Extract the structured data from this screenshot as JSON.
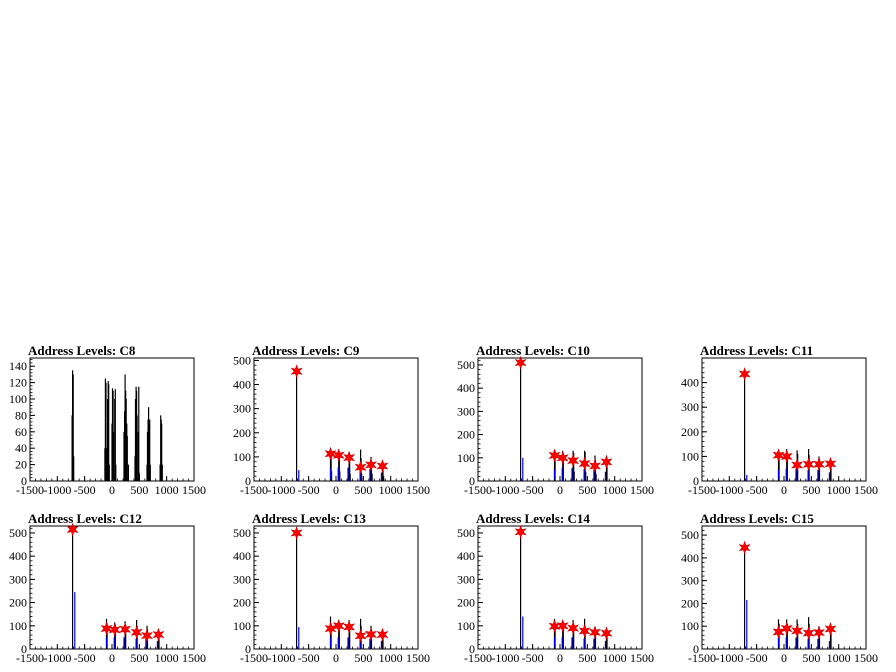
{
  "chart_data": [
    {
      "type": "bar",
      "title": "Address Levels: C8",
      "ylim": [
        0,
        150
      ],
      "yticks": [
        0,
        20,
        40,
        60,
        80,
        100,
        120,
        140
      ],
      "xlim": [
        -1500,
        1500
      ],
      "xticks": [
        -1500,
        -1000,
        -500,
        0,
        500,
        1000,
        1500
      ],
      "series": [
        {
          "color": "#000000",
          "x": [
            -730,
            -720,
            -710,
            -700,
            -130,
            -120,
            -110,
            -100,
            -80,
            -70,
            -60,
            -50,
            0,
            10,
            20,
            30,
            50,
            60,
            70,
            220,
            230,
            240,
            250,
            260,
            270,
            280,
            300,
            420,
            430,
            440,
            450,
            460,
            480,
            490,
            500,
            640,
            650,
            660,
            670,
            680,
            690,
            700,
            880,
            890,
            900,
            910,
            920
          ],
          "values": [
            80,
            135,
            130,
            30,
            40,
            125,
            120,
            40,
            100,
            122,
            118,
            20,
            70,
            113,
            110,
            60,
            100,
            112,
            20,
            60,
            85,
            130,
            110,
            100,
            70,
            55,
            20,
            30,
            100,
            115,
            110,
            80,
            60,
            115,
            10,
            20,
            60,
            75,
            90,
            70,
            75,
            20,
            20,
            80,
            75,
            70,
            20
          ]
        }
      ]
    },
    {
      "type": "bar",
      "title": "Address Levels: C9",
      "ylim": [
        0,
        510
      ],
      "yticks": [
        0,
        100,
        200,
        300,
        400,
        500
      ],
      "xlim": [
        -1500,
        1500
      ],
      "xticks": [
        -1500,
        -1000,
        -500,
        0,
        500,
        1000,
        1500
      ],
      "series": [
        {
          "color": "#000000",
          "x": [
            -720,
            -100,
            -90,
            -80,
            50,
            60,
            70,
            240,
            250,
            260,
            450,
            460,
            470,
            640,
            650,
            660,
            850,
            860,
            870
          ],
          "values": [
            460,
            120,
            110,
            40,
            120,
            115,
            40,
            120,
            110,
            30,
            130,
            95,
            30,
            100,
            80,
            30,
            80,
            70,
            20
          ]
        },
        {
          "color": "#0000ff",
          "x": [
            -680,
            -100,
            40,
            220,
            440,
            620,
            830
          ],
          "values": [
            45,
            50,
            55,
            55,
            50,
            50,
            35
          ]
        }
      ],
      "markers": {
        "x": [
          -720,
          -100,
          50,
          240,
          450,
          640,
          850
        ],
        "values": [
          455,
          113,
          107,
          97,
          57,
          67,
          62
        ]
      }
    },
    {
      "type": "bar",
      "title": "Address Levels: C10",
      "ylim": [
        0,
        530
      ],
      "yticks": [
        0,
        100,
        200,
        300,
        400,
        500
      ],
      "xlim": [
        -1500,
        1500
      ],
      "xticks": [
        -1500,
        -1000,
        -500,
        0,
        500,
        1000,
        1500
      ],
      "series": [
        {
          "color": "#000000",
          "x": [
            -720,
            -100,
            -90,
            50,
            60,
            240,
            250,
            260,
            450,
            460,
            470,
            640,
            650,
            660,
            850,
            860
          ],
          "values": [
            520,
            120,
            130,
            130,
            120,
            130,
            120,
            40,
            130,
            125,
            40,
            110,
            90,
            30,
            110,
            90
          ]
        },
        {
          "color": "#0000ff",
          "x": [
            -680,
            -100,
            40,
            220,
            440,
            620,
            830
          ],
          "values": [
            100,
            50,
            55,
            55,
            50,
            50,
            40
          ]
        }
      ],
      "markers": {
        "x": [
          -720,
          -100,
          50,
          240,
          450,
          640,
          850
        ],
        "values": [
          510,
          110,
          100,
          88,
          75,
          65,
          82
        ]
      }
    },
    {
      "type": "bar",
      "title": "Address Levels: C11",
      "ylim": [
        0,
        500
      ],
      "yticks": [
        0,
        100,
        200,
        300,
        400
      ],
      "xlim": [
        -1500,
        1500
      ],
      "xticks": [
        -1500,
        -1000,
        -500,
        0,
        500,
        1000,
        1500
      ],
      "series": [
        {
          "color": "#000000",
          "x": [
            -720,
            -100,
            -90,
            50,
            60,
            240,
            250,
            450,
            460,
            640,
            650,
            850,
            860
          ],
          "values": [
            440,
            120,
            115,
            130,
            110,
            125,
            110,
            130,
            105,
            100,
            90,
            90,
            80
          ]
        },
        {
          "color": "#0000ff",
          "x": [
            -680,
            -100,
            40,
            220,
            440,
            620,
            830
          ],
          "values": [
            25,
            45,
            50,
            50,
            45,
            45,
            35
          ]
        }
      ],
      "markers": {
        "x": [
          -720,
          -100,
          50,
          240,
          450,
          640,
          850
        ],
        "values": [
          435,
          105,
          100,
          65,
          68,
          68,
          70
        ]
      }
    },
    {
      "type": "bar",
      "title": "Address Levels: C12",
      "ylim": [
        0,
        530
      ],
      "yticks": [
        0,
        100,
        200,
        300,
        400,
        500
      ],
      "xlim": [
        -1500,
        1500
      ],
      "xticks": [
        -1500,
        -1000,
        -500,
        0,
        500,
        1000,
        1500
      ],
      "series": [
        {
          "color": "#000000",
          "x": [
            -720,
            -100,
            -90,
            50,
            60,
            240,
            250,
            450,
            460,
            640,
            650,
            850,
            860
          ],
          "values": [
            520,
            130,
            110,
            115,
            105,
            120,
            105,
            125,
            100,
            100,
            85,
            80,
            70
          ]
        },
        {
          "color": "#0000ff",
          "x": [
            -680,
            -100,
            40,
            220,
            440,
            620,
            830
          ],
          "values": [
            245,
            50,
            50,
            50,
            45,
            45,
            35
          ]
        }
      ],
      "markers": {
        "x": [
          -720,
          -100,
          50,
          240,
          450,
          640,
          850
        ],
        "values": [
          515,
          88,
          83,
          85,
          72,
          58,
          62
        ]
      }
    },
    {
      "type": "bar",
      "title": "Address Levels: C13",
      "ylim": [
        0,
        530
      ],
      "yticks": [
        0,
        100,
        200,
        300,
        400,
        500
      ],
      "xlim": [
        -1500,
        1500
      ],
      "xticks": [
        -1500,
        -1000,
        -500,
        0,
        500,
        1000,
        1500
      ],
      "series": [
        {
          "color": "#000000",
          "x": [
            -720,
            -100,
            -90,
            50,
            60,
            240,
            250,
            450,
            460,
            640,
            650,
            850,
            860
          ],
          "values": [
            505,
            140,
            110,
            115,
            105,
            125,
            105,
            130,
            100,
            100,
            85,
            80,
            70
          ]
        },
        {
          "color": "#0000ff",
          "x": [
            -680,
            -100,
            40,
            220,
            440,
            620,
            830
          ],
          "values": [
            95,
            50,
            50,
            50,
            45,
            45,
            35
          ]
        }
      ],
      "markers": {
        "x": [
          -720,
          -100,
          50,
          240,
          450,
          640,
          850
        ],
        "values": [
          500,
          88,
          100,
          95,
          57,
          63,
          62
        ]
      }
    },
    {
      "type": "bar",
      "title": "Address Levels: C14",
      "ylim": [
        0,
        530
      ],
      "yticks": [
        0,
        100,
        200,
        300,
        400,
        500
      ],
      "xlim": [
        -1500,
        1500
      ],
      "xticks": [
        -1500,
        -1000,
        -500,
        0,
        500,
        1000,
        1500
      ],
      "series": [
        {
          "color": "#000000",
          "x": [
            -720,
            -100,
            -90,
            50,
            60,
            240,
            250,
            450,
            460,
            640,
            650,
            850,
            860
          ],
          "values": [
            510,
            130,
            110,
            120,
            105,
            125,
            110,
            130,
            100,
            95,
            85,
            85,
            75
          ]
        },
        {
          "color": "#0000ff",
          "x": [
            -680,
            -100,
            40,
            220,
            440,
            620,
            830
          ],
          "values": [
            140,
            50,
            50,
            50,
            45,
            45,
            35
          ]
        }
      ],
      "markers": {
        "x": [
          -720,
          -100,
          50,
          240,
          450,
          640,
          850
        ],
        "values": [
          505,
          98,
          100,
          90,
          78,
          72,
          68
        ]
      }
    },
    {
      "type": "bar",
      "title": "Address Levels: C15",
      "ylim": [
        0,
        540
      ],
      "yticks": [
        0,
        100,
        200,
        300,
        400,
        500
      ],
      "xlim": [
        -1500,
        1500
      ],
      "xticks": [
        -1500,
        -1000,
        -500,
        0,
        500,
        1000,
        1500
      ],
      "series": [
        {
          "color": "#000000",
          "x": [
            -720,
            -100,
            -90,
            50,
            60,
            240,
            250,
            450,
            460,
            640,
            650,
            850,
            860
          ],
          "values": [
            450,
            130,
            110,
            130,
            110,
            130,
            110,
            140,
            110,
            100,
            85,
            90,
            80
          ]
        },
        {
          "color": "#0000ff",
          "x": [
            -680,
            -100,
            40,
            220,
            440,
            620,
            830
          ],
          "values": [
            215,
            50,
            50,
            50,
            45,
            45,
            35
          ]
        }
      ],
      "markers": {
        "x": [
          -720,
          -100,
          50,
          240,
          450,
          640,
          850
        ],
        "values": [
          445,
          75,
          90,
          80,
          70,
          72,
          88
        ]
      }
    }
  ]
}
